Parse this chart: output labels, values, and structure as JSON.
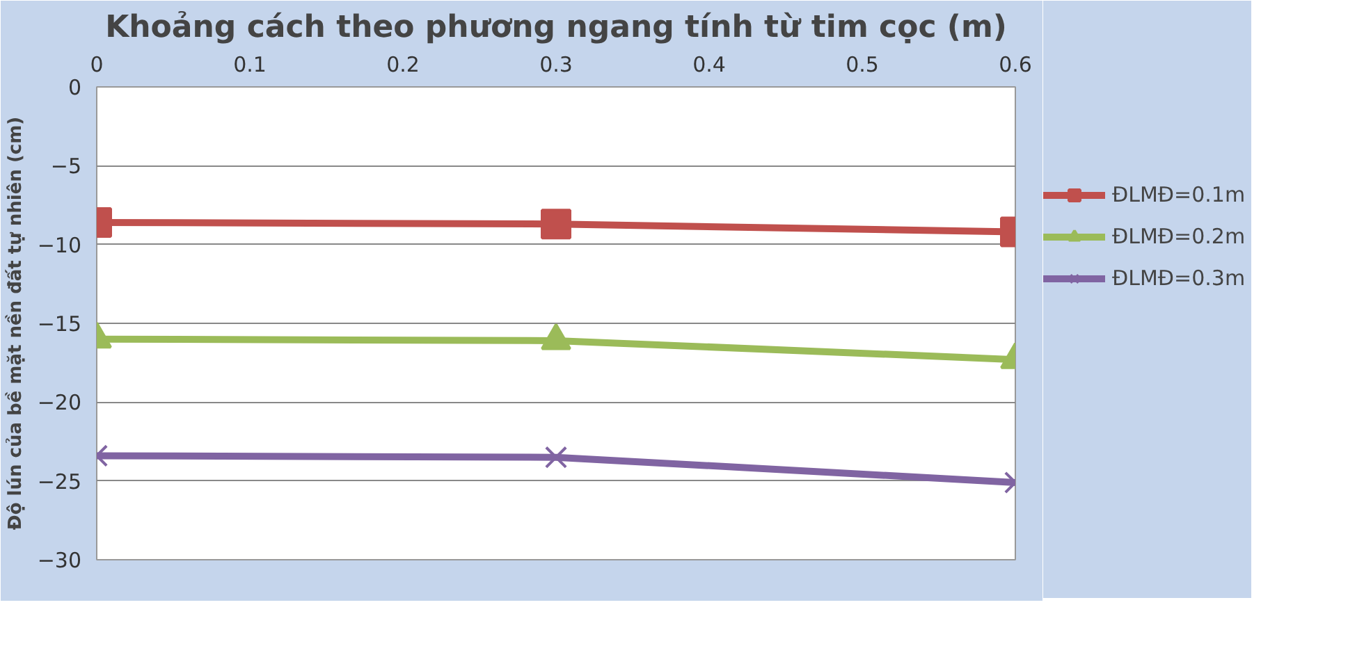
{
  "chart_data": {
    "type": "line",
    "title": "Khoảng cách theo phương ngang tính từ tim cọc (m)",
    "ylabel": "Độ lún của bề mặt nền đất tự nhiên (cm)",
    "x": [
      0,
      0.3,
      0.6
    ],
    "series": [
      {
        "name": "ĐLMĐ=0.1m",
        "color": "#c0504d",
        "marker": "square",
        "values": [
          -8.6,
          -8.7,
          -9.2
        ]
      },
      {
        "name": "ĐLMĐ=0.2m",
        "color": "#9bbb59",
        "marker": "triangle",
        "values": [
          -16.0,
          -16.1,
          -17.3
        ]
      },
      {
        "name": "ĐLMĐ=0.3m",
        "color": "#8064a2",
        "marker": "cross",
        "values": [
          -23.4,
          -23.5,
          -25.1
        ]
      }
    ],
    "xlim": [
      0,
      0.6
    ],
    "xticks": [
      0,
      0.1,
      0.2,
      0.3,
      0.4,
      0.5,
      0.6
    ],
    "ylim": [
      -30,
      0
    ],
    "yticks": [
      0,
      -5,
      -10,
      -15,
      -20,
      -25,
      -30
    ],
    "grid": "y",
    "legend": "right"
  }
}
